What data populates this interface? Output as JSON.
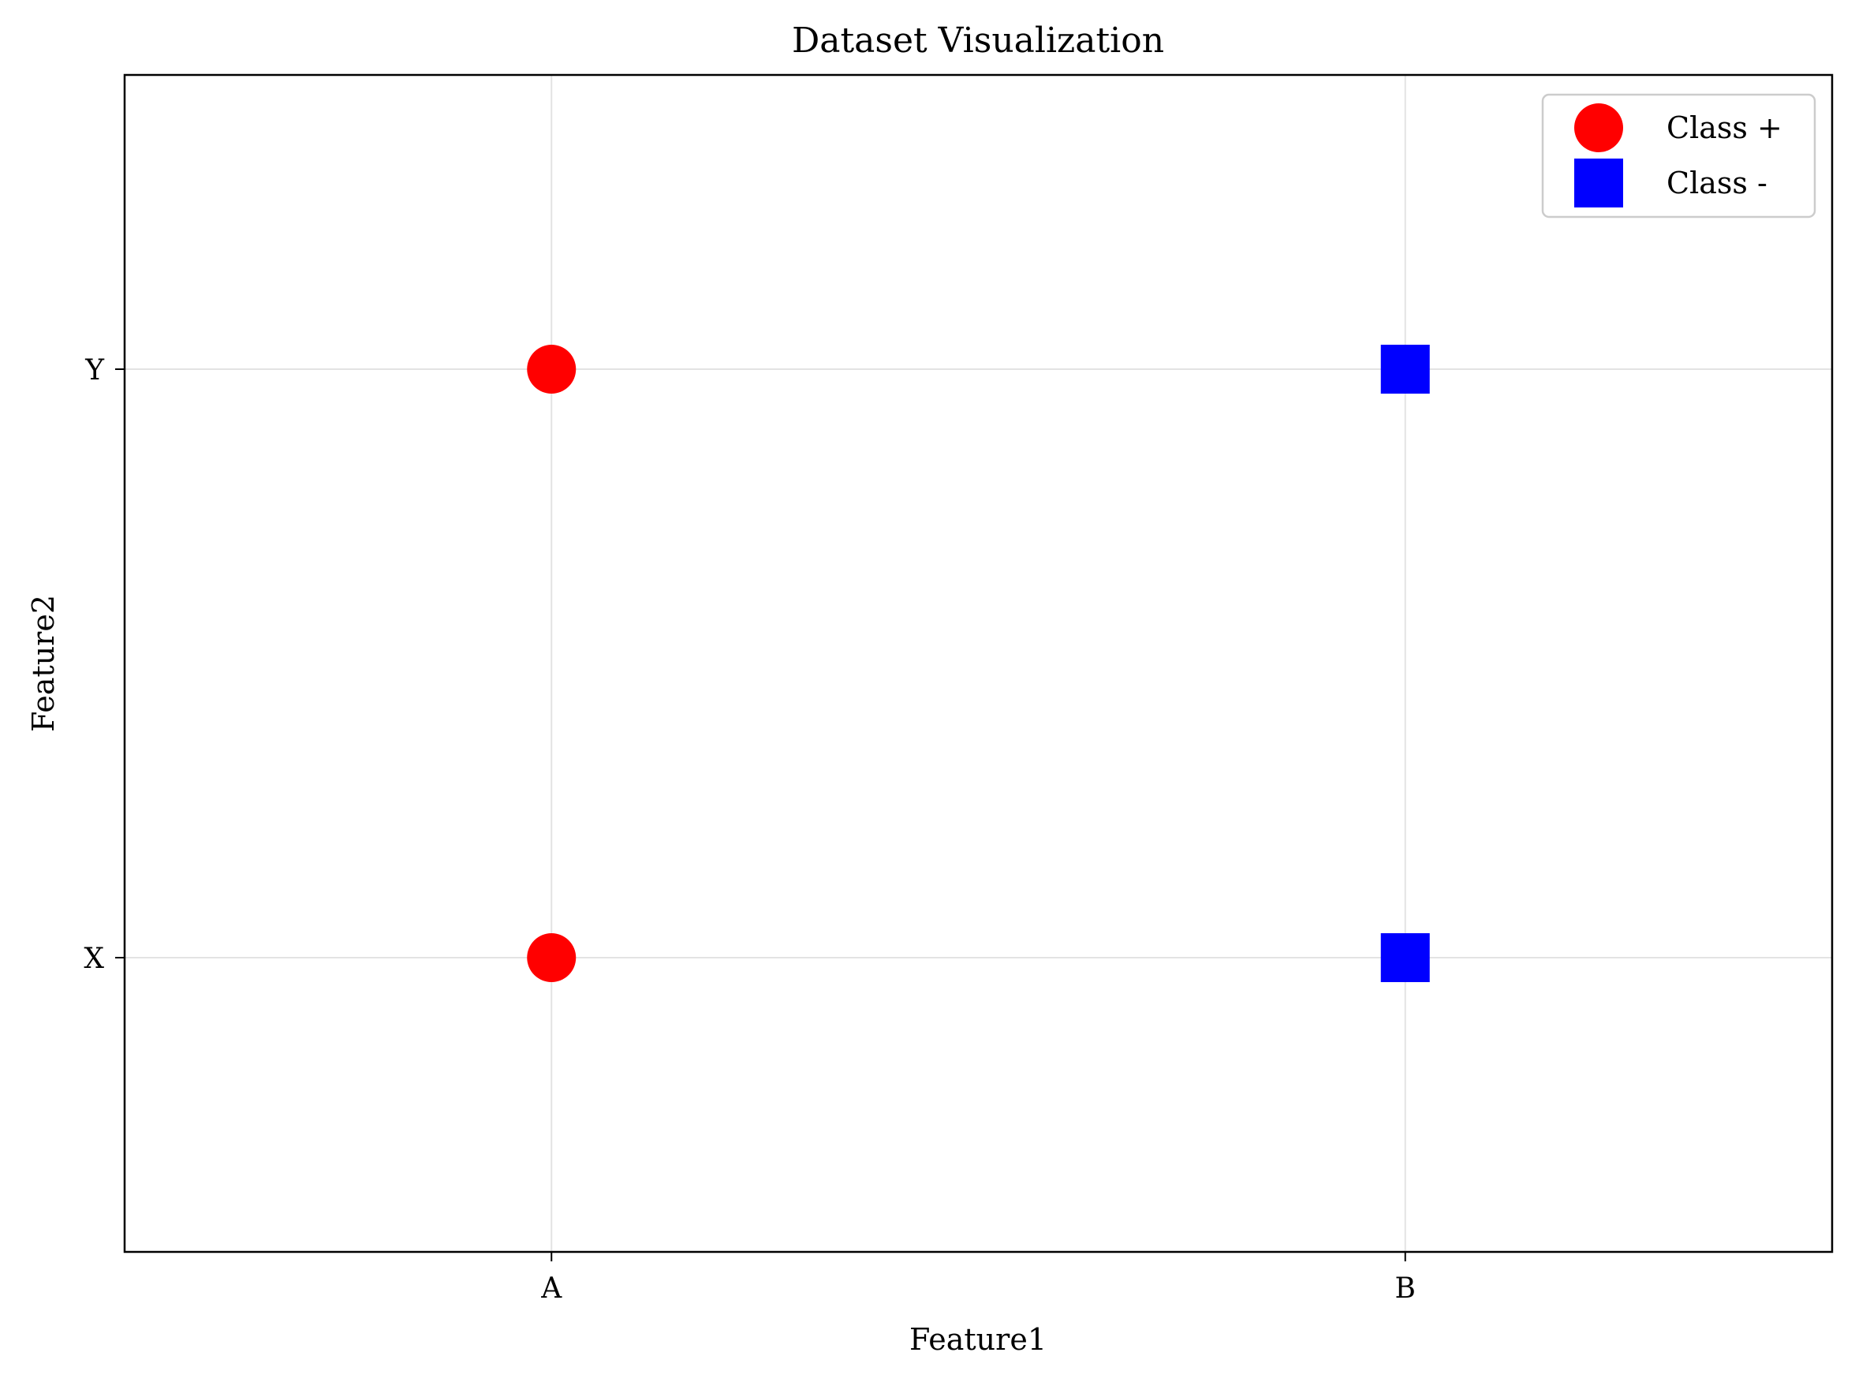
{
  "chart_data": {
    "type": "scatter",
    "title": "Dataset Visualization",
    "xlabel": "Feature1",
    "ylabel": "Feature2",
    "x_categories": [
      "A",
      "B"
    ],
    "y_categories": [
      "X",
      "Y"
    ],
    "xlim": [
      -0.5,
      1.5
    ],
    "ylim": [
      -0.5,
      1.5
    ],
    "grid": true,
    "legend_position": "top-right",
    "series": [
      {
        "name": "Class +",
        "marker": "circle",
        "color": "#ff0000",
        "points": [
          {
            "x": "A",
            "y": "X"
          },
          {
            "x": "A",
            "y": "Y"
          }
        ]
      },
      {
        "name": "Class -",
        "marker": "square",
        "color": "#0000ff",
        "points": [
          {
            "x": "B",
            "y": "X"
          },
          {
            "x": "B",
            "y": "Y"
          }
        ]
      }
    ]
  }
}
